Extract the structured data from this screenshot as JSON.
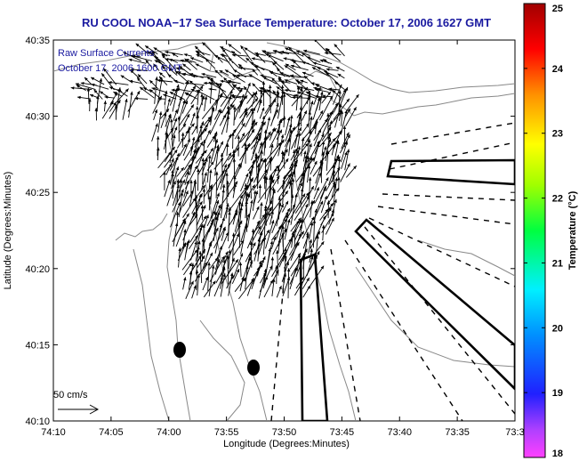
{
  "title": "RU COOL  NOAA−17  Sea Surface Temperature:  October 17, 2006 1627 GMT",
  "legend": {
    "line1": "Raw Surface Currents",
    "line2": "October 17, 2006 1600 GMT"
  },
  "scale": {
    "label": "50 cm/s"
  },
  "axes": {
    "xlabel": "Longitude (Degrees:Minutes)",
    "ylabel": "Latitude (Degrees:Minutes)",
    "xticks": [
      "74:10",
      "74:05",
      "74:00",
      "73:55",
      "73:50",
      "73:45",
      "73:40",
      "73:35",
      "73:3"
    ],
    "yticks": [
      "40:35",
      "40:30",
      "40:25",
      "40:20",
      "40:15",
      "40:10"
    ]
  },
  "colorbar": {
    "label": "Temperature (°C)",
    "ticks": [
      "25",
      "24",
      "23",
      "22",
      "21",
      "20",
      "19",
      "18"
    ]
  },
  "colors": {
    "title": "#1a1aa0",
    "land_contour": "#888888"
  }
}
